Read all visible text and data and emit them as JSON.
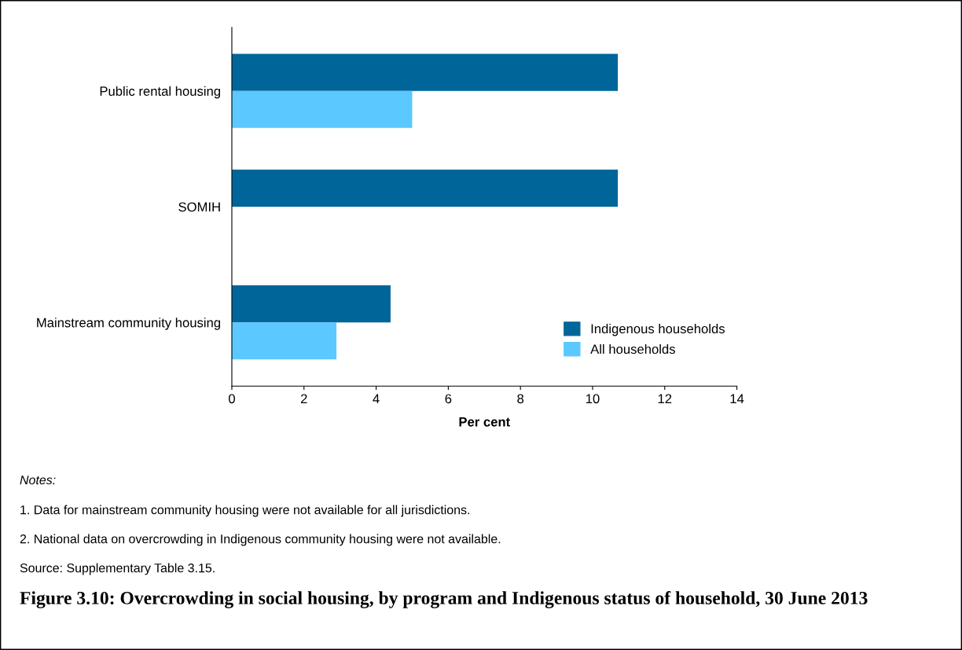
{
  "chart_data": {
    "type": "bar",
    "orientation": "horizontal",
    "title": "Figure 3.10: Overcrowding in social housing, by program and Indigenous status of household, 30 June 2013",
    "xlabel": "Per cent",
    "categories": [
      "Public rental housing",
      "SOMIH",
      "Mainstream community housing"
    ],
    "series": [
      {
        "name": "Indigenous households",
        "color": "#006699",
        "values": [
          10.7,
          10.7,
          4.4
        ]
      },
      {
        "name": "All households",
        "color": "#5bc8ff",
        "values": [
          5.0,
          null,
          2.9
        ]
      }
    ],
    "xlim": [
      0,
      14
    ],
    "xticks": [
      0,
      2,
      4,
      6,
      8,
      10,
      12,
      14
    ],
    "legend": "bottom right",
    "annotations": [
      "Notes:",
      "1. Data for mainstream community housing were not available for all jurisdictions.",
      "2. National data on overcrowding in Indigenous community housing were not available.",
      "Source: Supplementary Table 3.15."
    ]
  }
}
